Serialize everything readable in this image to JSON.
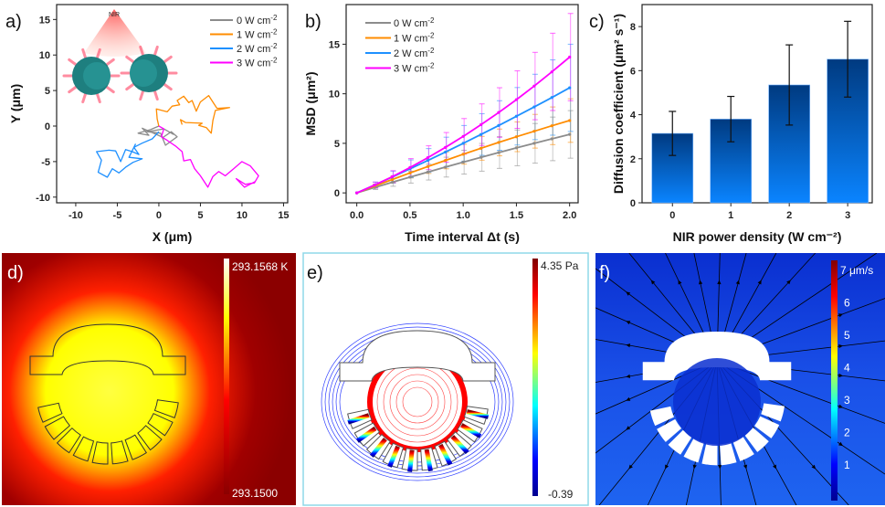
{
  "chart_data": [
    {
      "panel": "a)",
      "type": "line",
      "xlabel": "X (μm)",
      "ylabel": "Y (μm)",
      "xlim": [
        -12.3,
        15.5
      ],
      "ylim": [
        -10.8,
        17.1
      ],
      "xticks": [
        "-10",
        "-5",
        "0",
        "5",
        "10",
        "15"
      ],
      "xtick_values": [
        -10,
        -5,
        0,
        5,
        10,
        15
      ],
      "yticks": [
        "-10",
        "-5",
        "0",
        "5",
        "10",
        "15"
      ],
      "ytick_values": [
        -10,
        -5,
        0,
        5,
        10,
        15
      ],
      "inset_label": "NIR",
      "legend_position": "top-right",
      "series": [
        {
          "name": "0 W cm",
          "sup": "-2",
          "color": "#8c8c8c",
          "points": [
            [
              0,
              0
            ],
            [
              -1,
              -0.5
            ],
            [
              -2.5,
              -1
            ],
            [
              -1.2,
              -1.3
            ],
            [
              -2,
              -0.3
            ],
            [
              0.5,
              -1.6
            ],
            [
              1.5,
              -0.8
            ],
            [
              2.2,
              -1.5
            ],
            [
              0.8,
              -2.7
            ],
            [
              0.2,
              -1
            ],
            [
              -1.4,
              -0.8
            ],
            [
              0.6,
              -0.4
            ],
            [
              1.8,
              -1.2
            ]
          ]
        },
        {
          "name": "1 W cm",
          "sup": "-2",
          "color": "#ff8c00",
          "points": [
            [
              0,
              0
            ],
            [
              -0.2,
              1
            ],
            [
              -0.3,
              2.4
            ],
            [
              1,
              2
            ],
            [
              1.6,
              2.8
            ],
            [
              2.5,
              3
            ],
            [
              2.2,
              3.6
            ],
            [
              3,
              4.2
            ],
            [
              3.6,
              3.3
            ],
            [
              4,
              3.6
            ],
            [
              4.5,
              2.1
            ],
            [
              5,
              3.4
            ],
            [
              6,
              4.3
            ],
            [
              6.6,
              3.2
            ],
            [
              7,
              2.5
            ],
            [
              8.5,
              2.6
            ],
            [
              6.8,
              2.2
            ],
            [
              6.5,
              0.8
            ],
            [
              6.3,
              -1
            ],
            [
              5.7,
              -0.2
            ],
            [
              4.8,
              0.1
            ],
            [
              5.2,
              0.4
            ],
            [
              3.2,
              0.5
            ],
            [
              2.6,
              0.9
            ],
            [
              2.8,
              0.2
            ]
          ]
        },
        {
          "name": "2 W cm",
          "sup": "-2",
          "color": "#1e90ff",
          "points": [
            [
              0,
              -0.8
            ],
            [
              -0.8,
              -1.8
            ],
            [
              -2,
              -2.4
            ],
            [
              -3,
              -3
            ],
            [
              -2.4,
              -4
            ],
            [
              -3.2,
              -3.6
            ],
            [
              -4,
              -3.3
            ],
            [
              -4.6,
              -5
            ],
            [
              -5.2,
              -3.5
            ],
            [
              -6,
              -3.4
            ],
            [
              -7.5,
              -3.6
            ],
            [
              -6.9,
              -4.8
            ],
            [
              -7.3,
              -6.5
            ],
            [
              -6.2,
              -7.2
            ],
            [
              -5.6,
              -6
            ],
            [
              -4.8,
              -6.6
            ],
            [
              -4,
              -5.8
            ],
            [
              -3.1,
              -5.1
            ],
            [
              -2,
              -4.6
            ],
            [
              -3.6,
              -4.4
            ],
            [
              -2.8,
              -2.5
            ]
          ]
        },
        {
          "name": "3 W cm",
          "sup": "-2",
          "color": "#ff00ff",
          "points": [
            [
              0,
              0
            ],
            [
              0.6,
              -0.4
            ],
            [
              0.3,
              -1.5
            ],
            [
              1,
              -2
            ],
            [
              2,
              -2.8
            ],
            [
              2.8,
              -3.6
            ],
            [
              3,
              -4.9
            ],
            [
              3.8,
              -4.7
            ],
            [
              4.3,
              -6
            ],
            [
              5,
              -7
            ],
            [
              5.9,
              -8.6
            ],
            [
              6.5,
              -7.1
            ],
            [
              7.2,
              -6.4
            ],
            [
              8,
              -7
            ],
            [
              9,
              -6
            ],
            [
              10,
              -5
            ],
            [
              11,
              -5.6
            ],
            [
              12,
              -7
            ],
            [
              11.5,
              -8
            ],
            [
              10.4,
              -8.2
            ],
            [
              9.3,
              -7.4
            ],
            [
              10.3,
              -8.6
            ],
            [
              11.6,
              -7.8
            ]
          ]
        }
      ]
    },
    {
      "panel": "b)",
      "type": "line",
      "xlabel": "Time interval Δt (s)",
      "ylabel": "MSD (μm²)",
      "xlim": [
        -0.1,
        2.08
      ],
      "ylim": [
        -1,
        19
      ],
      "xticks": [
        "0.0",
        "0.5",
        "1.0",
        "1.5",
        "2.0"
      ],
      "xtick_values": [
        0,
        0.5,
        1,
        1.5,
        2
      ],
      "yticks": [
        "0",
        "5",
        "10",
        "15"
      ],
      "ytick_values": [
        0,
        5,
        10,
        15
      ],
      "legend_position": "top-left",
      "x": [
        0,
        0.167,
        0.333,
        0.5,
        0.667,
        0.833,
        1.0,
        1.167,
        1.333,
        1.5,
        1.667,
        1.833,
        2.0
      ],
      "series": [
        {
          "name": "0 W cm",
          "sup": "-2",
          "color": "#8c8c8c",
          "values": [
            0,
            0.54,
            1.07,
            1.59,
            2.1,
            2.6,
            3.1,
            3.59,
            4.07,
            4.54,
            5.0,
            5.45,
            5.9
          ],
          "error": [
            0,
            0.2,
            0.4,
            0.6,
            0.8,
            1.0,
            1.2,
            1.4,
            1.6,
            1.8,
            2.0,
            2.2,
            2.4
          ]
        },
        {
          "name": "1 W cm",
          "sup": "-2",
          "color": "#ff8c00",
          "values": [
            0,
            0.69,
            1.35,
            2.01,
            2.66,
            3.28,
            3.9,
            4.5,
            5.09,
            5.66,
            6.22,
            6.77,
            7.3
          ],
          "error": [
            0,
            0.2,
            0.35,
            0.5,
            0.7,
            0.85,
            1.0,
            1.2,
            1.35,
            1.5,
            1.7,
            1.9,
            2.2
          ]
        },
        {
          "name": "2 W cm",
          "sup": "-2",
          "color": "#1e90ff",
          "values": [
            0,
            0.79,
            1.6,
            2.43,
            3.27,
            4.12,
            5.0,
            5.89,
            6.8,
            7.73,
            8.67,
            9.62,
            10.6
          ],
          "error": [
            0,
            0.3,
            0.6,
            0.9,
            1.2,
            1.5,
            1.8,
            2.1,
            2.5,
            2.9,
            3.3,
            3.8,
            4.4
          ]
        },
        {
          "name": "3 W cm",
          "sup": "-2",
          "color": "#ff00ff",
          "values": [
            0,
            0.79,
            1.64,
            2.56,
            3.55,
            4.59,
            5.7,
            6.88,
            8.11,
            9.41,
            10.78,
            12.21,
            13.7
          ],
          "error": [
            0,
            0.3,
            0.6,
            0.9,
            1.2,
            1.5,
            1.8,
            2.1,
            2.5,
            2.9,
            3.4,
            3.9,
            4.4
          ]
        }
      ]
    },
    {
      "panel": "c)",
      "type": "bar",
      "xlabel": "NIR power density (W cm⁻²)",
      "ylabel": "Diffusion coefficient (μm² s⁻¹)",
      "xlim": [
        -0.52,
        3.42
      ],
      "ylim": [
        0,
        9
      ],
      "categories": [
        "0",
        "1",
        "2",
        "3"
      ],
      "category_values": [
        0,
        1,
        2,
        3
      ],
      "values": [
        3.15,
        3.8,
        5.35,
        6.52
      ],
      "error": [
        1.0,
        1.03,
        1.82,
        1.72
      ],
      "yticks": [
        "0",
        "2",
        "4",
        "6",
        "8"
      ],
      "ytick_values": [
        0,
        2,
        4,
        6,
        8
      ],
      "bar_color_top": "#003a80",
      "bar_color_bottom": "#0a84ff"
    }
  ],
  "simulations": {
    "d": {
      "label": "d)",
      "colorbar_max": "293.1568 K",
      "colorbar_min": "293.1500"
    },
    "e": {
      "label": "e)",
      "colorbar_max": "4.35 Pa",
      "colorbar_min": "-0.39"
    },
    "f": {
      "label": "f)",
      "colorbar_max": "7 μm/s",
      "colorbar_ticks": [
        "1",
        "2",
        "3",
        "4",
        "5",
        "6"
      ]
    }
  }
}
